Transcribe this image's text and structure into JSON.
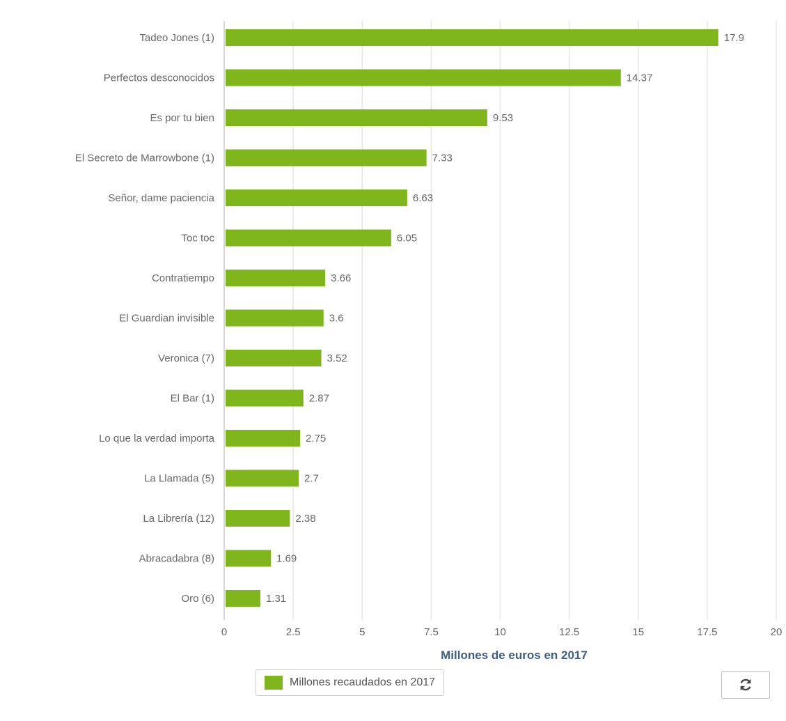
{
  "chart_data": {
    "type": "bar",
    "orientation": "horizontal",
    "categories": [
      "Tadeo Jones (1)",
      "Perfectos desconocidos",
      "Es por tu bien",
      "El Secreto de Marrowbone (1)",
      "Señor, dame paciencia",
      "Toc toc",
      "Contratiempo",
      "El Guardian invisible",
      "Veronica (7)",
      "El Bar (1)",
      "Lo que la verdad importa",
      "La Llamada (5)",
      "La Librería (12)",
      "Abracadabra (8)",
      "Oro (6)"
    ],
    "series": [
      {
        "name": "Millones recaudados en 2017",
        "values": [
          17.9,
          14.37,
          9.53,
          7.33,
          6.63,
          6.05,
          3.66,
          3.6,
          3.52,
          2.87,
          2.75,
          2.7,
          2.38,
          1.69,
          1.31
        ],
        "labels": [
          "17.9",
          "14.37",
          "9.53",
          "7.33",
          "6.63",
          "6.05",
          "3.66",
          "3.6",
          "3.52",
          "2.87",
          "2.75",
          "2.7",
          "2.38",
          "1.69",
          "1.31"
        ]
      }
    ],
    "xlabel": "Millones de euros en 2017",
    "ylabel": "",
    "xlim": [
      0,
      20
    ],
    "ticks": [
      "0",
      "2.5",
      "5",
      "7.5",
      "10",
      "12.5",
      "15",
      "17.5",
      "20"
    ],
    "grid": true,
    "legend": "bottom-center"
  },
  "colors": {
    "bar": "#7fb61c",
    "grid": "#e6e6e6",
    "axis_title": "#3e5f82",
    "text": "#666666"
  },
  "legend": {
    "label": "Millones recaudados en 2017"
  },
  "toolbar": {
    "refresh_icon": "refresh-icon"
  }
}
